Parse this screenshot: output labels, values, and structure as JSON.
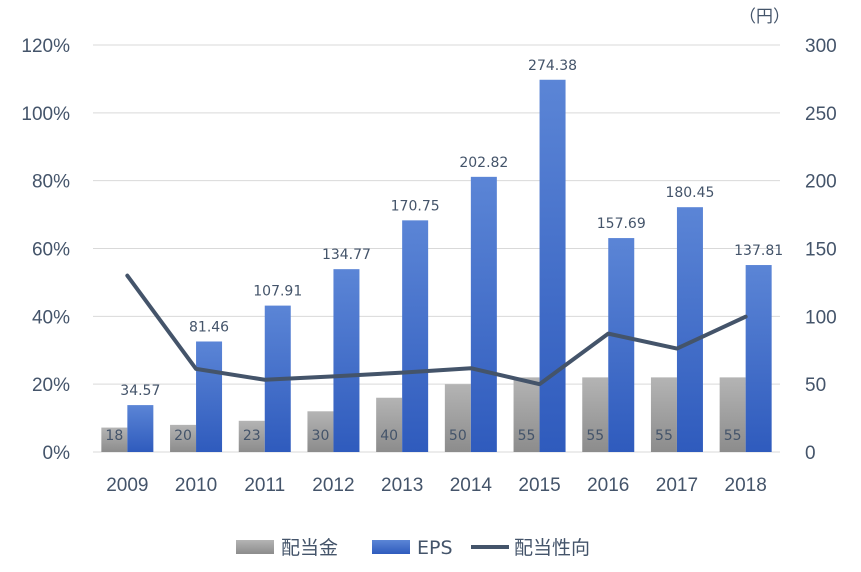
{
  "chart_data": {
    "type": "bar",
    "categories": [
      "2009",
      "2010",
      "2011",
      "2012",
      "2013",
      "2014",
      "2015",
      "2016",
      "2017",
      "2018"
    ],
    "series": [
      {
        "name": "配当金",
        "type": "bar",
        "axis": "right",
        "color": "#9a9a9a",
        "values": [
          18,
          20,
          23,
          30,
          40,
          50,
          55,
          55,
          55,
          55
        ]
      },
      {
        "name": "EPS",
        "type": "bar",
        "axis": "right",
        "color": "#3a66c4",
        "values": [
          34.57,
          81.46,
          107.91,
          134.77,
          170.75,
          202.82,
          274.38,
          157.69,
          180.45,
          137.81
        ]
      },
      {
        "name": "配当性向",
        "type": "line",
        "axis": "left",
        "color": "#44546a",
        "values": [
          0.52,
          0.245,
          0.213,
          0.223,
          0.234,
          0.247,
          0.2,
          0.349,
          0.305,
          0.399
        ]
      }
    ],
    "data_labels": {
      "配当金": [
        "18",
        "20",
        "23",
        "30",
        "40",
        "50",
        "55",
        "55",
        "55",
        "55"
      ],
      "EPS": [
        "34.57",
        "81.46",
        "107.91",
        "134.77",
        "170.75",
        "202.82",
        "274.38",
        "157.69",
        "180.45",
        "137.81"
      ]
    },
    "left_axis": {
      "ticks": [
        "0%",
        "20%",
        "40%",
        "60%",
        "80%",
        "100%",
        "120%"
      ],
      "range": [
        0,
        1.2
      ]
    },
    "right_axis": {
      "ticks": [
        "0",
        "50",
        "100",
        "150",
        "200",
        "250",
        "300"
      ],
      "range": [
        0,
        300
      ],
      "unit": "（円）"
    },
    "legend": {
      "position": "bottom",
      "items": [
        "配当金",
        "EPS",
        "配当性向"
      ]
    },
    "grid": true
  }
}
